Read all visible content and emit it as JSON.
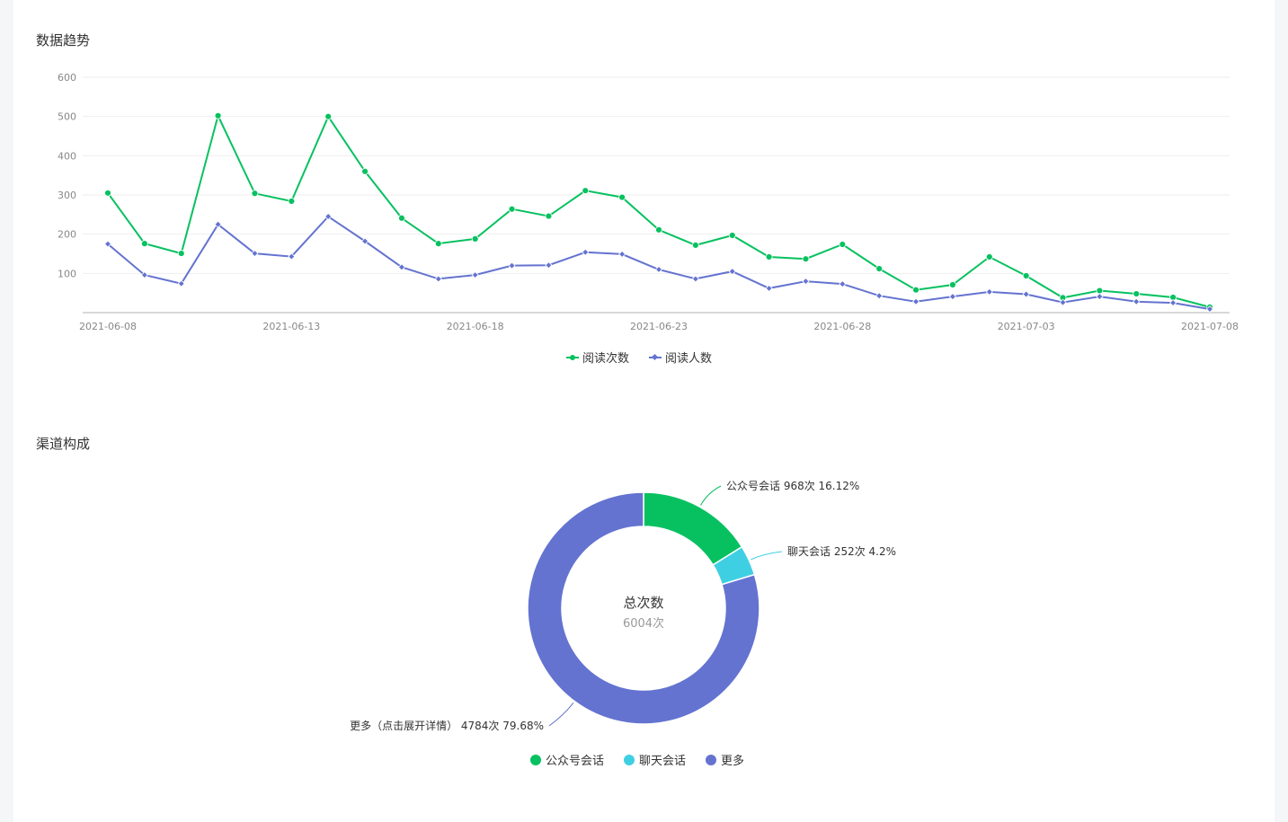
{
  "colors": {
    "green": "#07c160",
    "blue": "#6473d0",
    "cyan": "#3fcfe3",
    "grid": "#eeeeee",
    "axis": "#cccccc",
    "text": "#333333",
    "muted": "#888888"
  },
  "sections": {
    "trend_title": "数据趋势",
    "channel_title": "渠道构成"
  },
  "chart_data": [
    {
      "type": "line",
      "x": [
        "2021-06-08",
        "2021-06-09",
        "2021-06-10",
        "2021-06-11",
        "2021-06-12",
        "2021-06-13",
        "2021-06-14",
        "2021-06-15",
        "2021-06-16",
        "2021-06-17",
        "2021-06-18",
        "2021-06-19",
        "2021-06-20",
        "2021-06-21",
        "2021-06-22",
        "2021-06-23",
        "2021-06-24",
        "2021-06-25",
        "2021-06-26",
        "2021-06-27",
        "2021-06-28",
        "2021-06-29",
        "2021-06-30",
        "2021-07-01",
        "2021-07-02",
        "2021-07-03",
        "2021-07-04",
        "2021-07-05",
        "2021-07-06",
        "2021-07-07",
        "2021-07-08"
      ],
      "xticks": [
        "2021-06-08",
        "2021-06-13",
        "2021-06-18",
        "2021-06-23",
        "2021-06-28",
        "2021-07-03",
        "2021-07-08"
      ],
      "yticks": [
        100,
        200,
        300,
        400,
        500,
        600
      ],
      "ylim": [
        0,
        600
      ],
      "grid": true,
      "legend_position": "bottom-center",
      "series": [
        {
          "name": "阅读次数",
          "color": "#07c160",
          "marker": "circle",
          "values": [
            305,
            176,
            151,
            502,
            304,
            284,
            500,
            360,
            241,
            176,
            188,
            264,
            246,
            311,
            294,
            211,
            172,
            197,
            142,
            137,
            174,
            112,
            58,
            71,
            142,
            94,
            38,
            56,
            48,
            39,
            14
          ]
        },
        {
          "name": "阅读人数",
          "color": "#6473d0",
          "marker": "diamond",
          "values": [
            175,
            96,
            74,
            225,
            151,
            143,
            245,
            182,
            116,
            86,
            96,
            120,
            121,
            154,
            149,
            110,
            86,
            105,
            62,
            80,
            73,
            43,
            28,
            41,
            53,
            47,
            26,
            41,
            28,
            25,
            9
          ]
        }
      ]
    },
    {
      "type": "pie",
      "donut": true,
      "center_title": "总次数",
      "center_value": "6004次",
      "legend_position": "bottom-center",
      "slices": [
        {
          "name": "公众号会话",
          "label": "公众号会话 968次 16.12%",
          "value": 968,
          "percent": 16.12,
          "color": "#07c160"
        },
        {
          "name": "聊天会话",
          "label": "聊天会话 252次 4.2%",
          "value": 252,
          "percent": 4.2,
          "color": "#3fcfe3"
        },
        {
          "name": "更多",
          "label": "更多（点击展开详情） 4784次 79.68%",
          "value": 4784,
          "percent": 79.68,
          "color": "#6473d0"
        }
      ]
    }
  ]
}
